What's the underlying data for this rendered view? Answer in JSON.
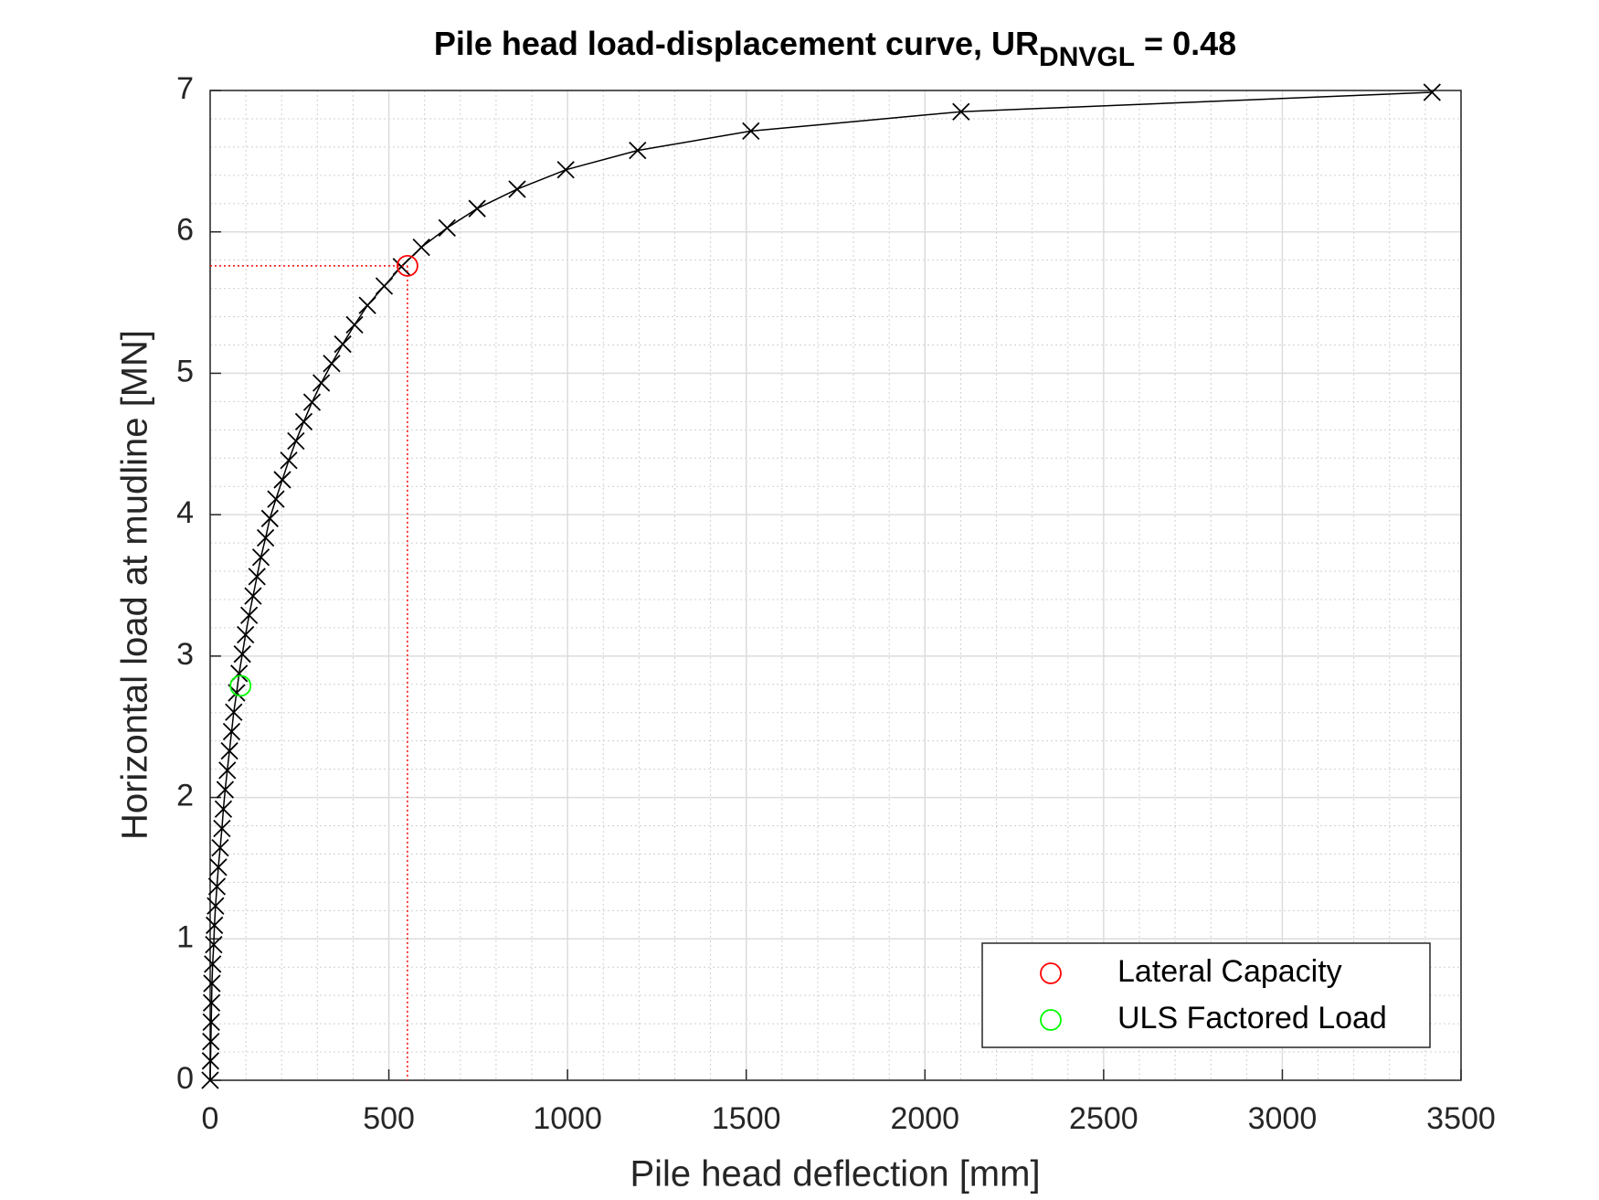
{
  "chart_data": {
    "type": "line",
    "title": "Pile head load-displacement curve, UR",
    "title_subscript": "DNVGL",
    "title_suffix": "= 0.48",
    "x_label": "Pile head deflection [mm]",
    "y_label": "Horizontal load at mudline [MN]",
    "xlim": [
      0,
      3500
    ],
    "xticks": [
      0,
      500,
      1000,
      1500,
      2000,
      2500,
      3000,
      3500
    ],
    "ylim": [
      0,
      7
    ],
    "yticks": [
      0,
      1,
      2,
      3,
      4,
      5,
      6,
      7
    ],
    "grid": true,
    "minor_grid": true,
    "legend": "lower right",
    "series": [
      {
        "color": "#000000",
        "marker": "x",
        "x": [
          0,
          1,
          2,
          3,
          4,
          5,
          7,
          10,
          12,
          15,
          19,
          23,
          28,
          33,
          37,
          42,
          48,
          54,
          60,
          66,
          74,
          81,
          90,
          99,
          109,
          120,
          131,
          142,
          155,
          167,
          184,
          202,
          220,
          240,
          262,
          285,
          311,
          340,
          371,
          404,
          440,
          487,
          535,
          591,
          663,
          747,
          859,
          995,
          1196,
          1513,
          2101,
          3419
        ],
        "values": [
          0,
          0.137,
          0.274,
          0.411,
          0.548,
          0.685,
          0.822,
          0.959,
          1.096,
          1.233,
          1.37,
          1.507,
          1.644,
          1.781,
          1.918,
          2.055,
          2.192,
          2.329,
          2.466,
          2.603,
          2.74,
          2.877,
          3.014,
          3.151,
          3.288,
          3.425,
          3.562,
          3.699,
          3.836,
          3.973,
          4.11,
          4.247,
          4.384,
          4.521,
          4.658,
          4.795,
          4.932,
          5.069,
          5.206,
          5.343,
          5.48,
          5.617,
          5.754,
          5.891,
          6.028,
          6.165,
          6.302,
          6.439,
          6.576,
          6.713,
          6.85,
          6.987
        ]
      },
      {
        "name": "Lateral Capacity",
        "color": "#ff0000",
        "marker": "o",
        "x": [
          552
        ],
        "values": [
          5.76
        ],
        "guide_lines": true
      },
      {
        "name": "ULS Factored Load",
        "color": "#00ff00",
        "marker": "o",
        "x": [
          85
        ],
        "values": [
          2.79
        ]
      }
    ]
  }
}
